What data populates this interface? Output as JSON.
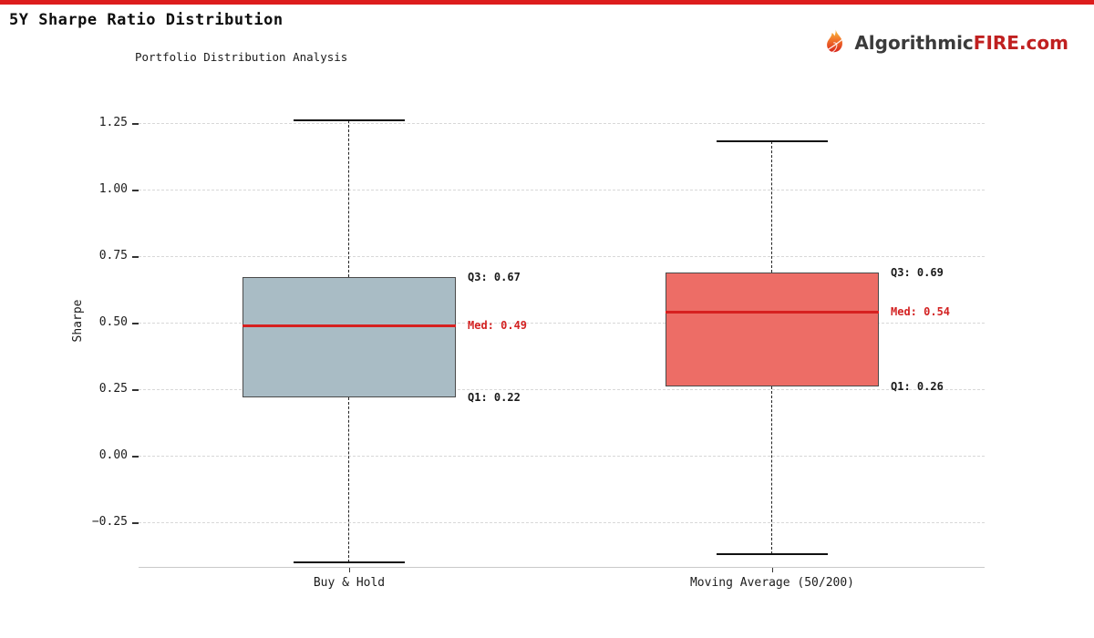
{
  "page": {
    "title": "5Y Sharpe Ratio Distribution"
  },
  "logo": {
    "icon": "flame-icon",
    "brand_dark": "Algorithmic",
    "brand_red": "FIRE.com"
  },
  "colors": {
    "accent_bar": "#dd1d1d",
    "median_line": "#d62020",
    "annotation_red": "#d32222",
    "logo_red": "#c02020",
    "box1_fill": "#a9bcc5",
    "box2_fill": "#ed6d66",
    "grid": "#d8d8d8"
  },
  "chart_data": {
    "type": "boxplot",
    "title": "Portfolio Distribution Analysis",
    "ylabel": "Sharpe",
    "categories": [
      "Buy & Hold",
      "Moving Average (50/200)"
    ],
    "yticks": [
      1.25,
      1.0,
      0.75,
      0.5,
      0.25,
      0.0,
      -0.25
    ],
    "ytick_labels": [
      "1.25",
      "1.00",
      "0.75",
      "0.50",
      "0.25",
      "0.00",
      "−0.25"
    ],
    "ylim": [
      -0.42,
      1.37
    ],
    "grid": "horizontal-dashed",
    "legend": "none",
    "series": [
      {
        "name": "Buy & Hold",
        "whisker_low": -0.4,
        "q1": 0.22,
        "median": 0.49,
        "q3": 0.67,
        "whisker_high": 1.26,
        "fill": "#a9bcc5",
        "ann_q3": "Q3: 0.67",
        "ann_med": "Med: 0.49",
        "ann_q1": "Q1: 0.22"
      },
      {
        "name": "Moving Average (50/200)",
        "whisker_low": -0.37,
        "q1": 0.26,
        "median": 0.54,
        "q3": 0.69,
        "whisker_high": 1.18,
        "fill": "#ed6d66",
        "ann_q3": "Q3: 0.69",
        "ann_med": "Med: 0.54",
        "ann_q1": "Q1: 0.26"
      }
    ]
  }
}
